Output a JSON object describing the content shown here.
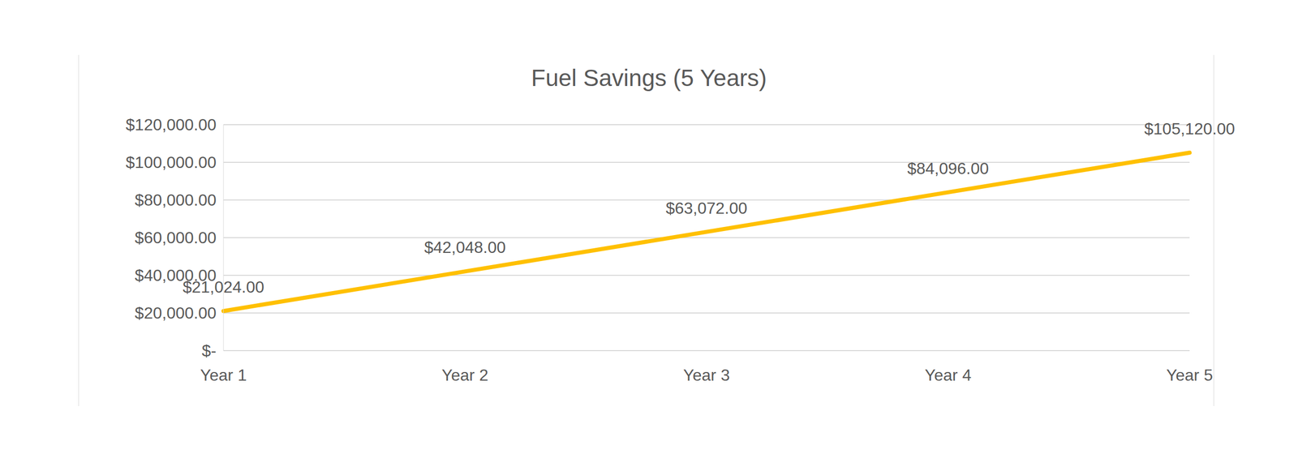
{
  "chart_data": {
    "type": "line",
    "title": "Fuel Savings (5 Years)",
    "categories": [
      "Year 1",
      "Year 2",
      "Year 3",
      "Year 4",
      "Year 5"
    ],
    "values": [
      21024,
      42048,
      63072,
      84096,
      105120
    ],
    "value_labels": [
      "$21,024.00",
      "$42,048.00",
      "$63,072.00",
      "$84,096.00",
      "$105,120.00"
    ],
    "data_labels": true,
    "color": "#ffc000",
    "ylim": [
      0,
      120000
    ],
    "yticks": [
      {
        "value": 0,
        "label": "$-"
      },
      {
        "value": 20000,
        "label": "$20,000.00"
      },
      {
        "value": 40000,
        "label": "$40,000.00"
      },
      {
        "value": 60000,
        "label": "$60,000.00"
      },
      {
        "value": 80000,
        "label": "$80,000.00"
      },
      {
        "value": 100000,
        "label": "$100,000.00"
      },
      {
        "value": 120000,
        "label": "$120,000.00"
      }
    ],
    "grid": true
  }
}
